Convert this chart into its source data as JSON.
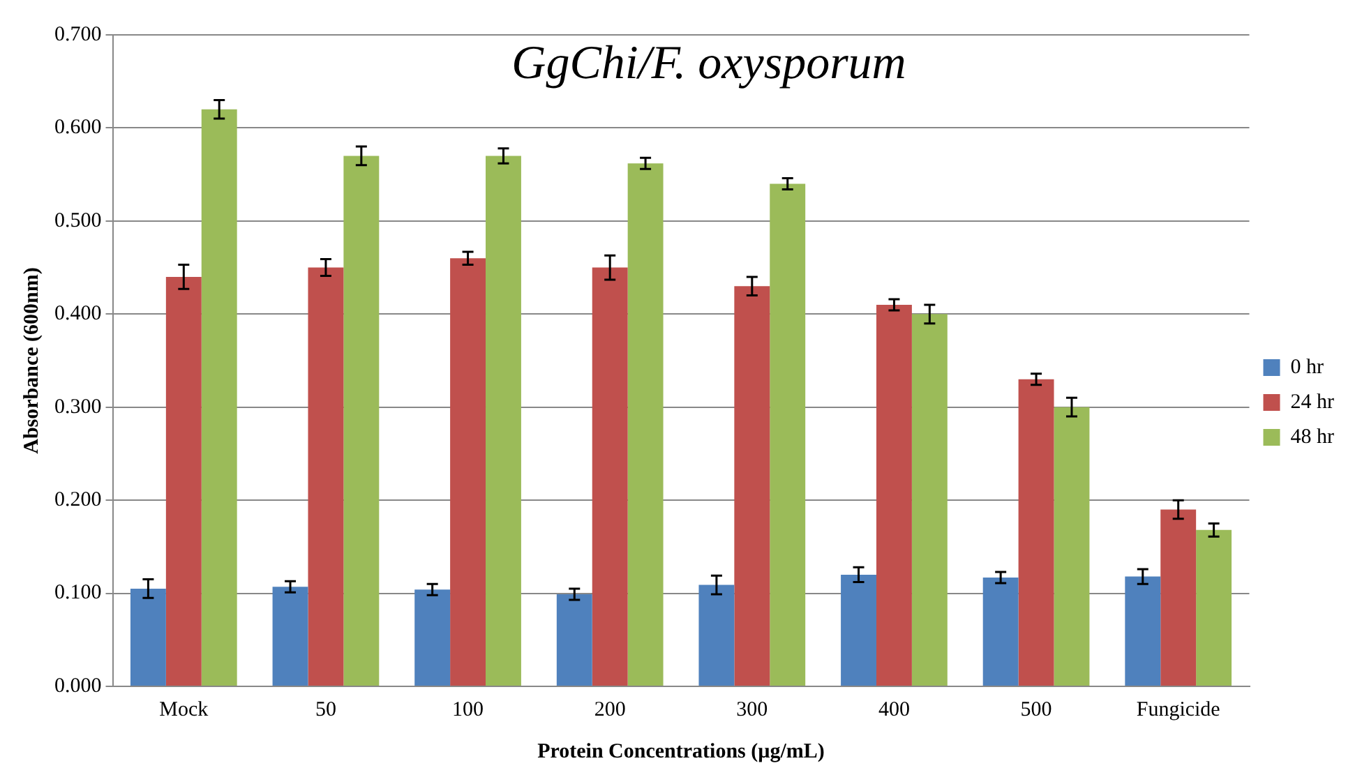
{
  "chart_data": {
    "type": "bar",
    "title": "GgChi/F. oxysporum",
    "xlabel": "Protein Concentrations (µg/mL)",
    "ylabel": "Absorbance (600nm)",
    "categories": [
      "Mock",
      "50",
      "100",
      "200",
      "300",
      "400",
      "500",
      "Fungicide"
    ],
    "series": [
      {
        "name": "0 hr",
        "color": "#4f81bd",
        "values": [
          0.105,
          0.107,
          0.104,
          0.099,
          0.109,
          0.12,
          0.117,
          0.118
        ],
        "errors": [
          0.01,
          0.006,
          0.006,
          0.006,
          0.01,
          0.008,
          0.006,
          0.008
        ]
      },
      {
        "name": "24 hr",
        "color": "#c0504d",
        "values": [
          0.44,
          0.45,
          0.46,
          0.45,
          0.43,
          0.41,
          0.33,
          0.19
        ],
        "errors": [
          0.013,
          0.009,
          0.007,
          0.013,
          0.01,
          0.006,
          0.006,
          0.01
        ]
      },
      {
        "name": "48 hr",
        "color": "#9bbb59",
        "values": [
          0.62,
          0.57,
          0.57,
          0.562,
          0.54,
          0.4,
          0.3,
          0.168
        ],
        "errors": [
          0.01,
          0.01,
          0.008,
          0.006,
          0.006,
          0.01,
          0.01,
          0.007
        ]
      }
    ],
    "ylim": [
      0,
      0.7
    ],
    "yticks": [
      {
        "value": 0,
        "label": "0.000"
      },
      {
        "value": 0.1,
        "label": "0.100"
      },
      {
        "value": 0.2,
        "label": "0.200"
      },
      {
        "value": 0.3,
        "label": "0.300"
      },
      {
        "value": 0.4,
        "label": "0.400"
      },
      {
        "value": 0.5,
        "label": "0.500"
      },
      {
        "value": 0.6,
        "label": "0.600"
      },
      {
        "value": 0.7,
        "label": "0.700"
      }
    ],
    "grid": "y",
    "legend": "right"
  }
}
